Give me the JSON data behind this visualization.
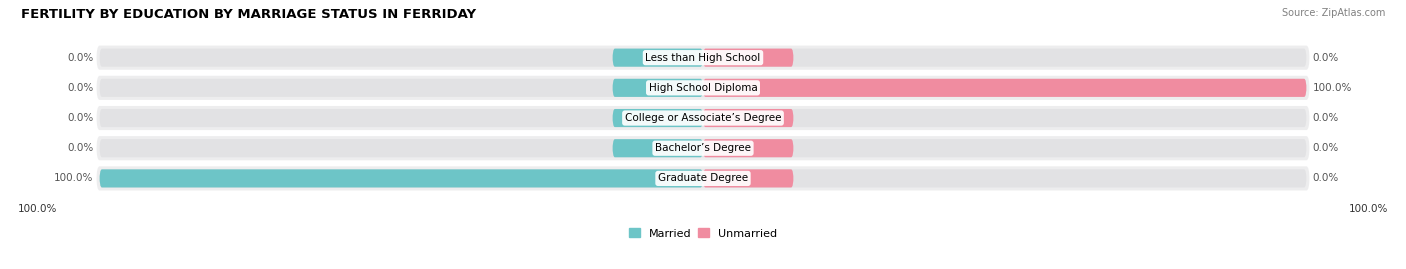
{
  "title": "FERTILITY BY EDUCATION BY MARRIAGE STATUS IN FERRIDAY",
  "source": "Source: ZipAtlas.com",
  "categories": [
    "Less than High School",
    "High School Diploma",
    "College or Associate’s Degree",
    "Bachelor’s Degree",
    "Graduate Degree"
  ],
  "married": [
    0.0,
    0.0,
    0.0,
    0.0,
    100.0
  ],
  "unmarried": [
    0.0,
    100.0,
    0.0,
    0.0,
    0.0
  ],
  "married_color": "#6DC5C7",
  "unmarried_color": "#F08CA0",
  "row_bg_color": "#EDEDEE",
  "bar_inner_bg_color": "#E2E2E4",
  "title_fontsize": 9.5,
  "label_fontsize": 7.5,
  "category_fontsize": 7.5,
  "source_fontsize": 7,
  "legend_fontsize": 8,
  "max_val": 100.0,
  "stub_size": 15.0,
  "figsize": [
    14.06,
    2.69
  ],
  "dpi": 100
}
